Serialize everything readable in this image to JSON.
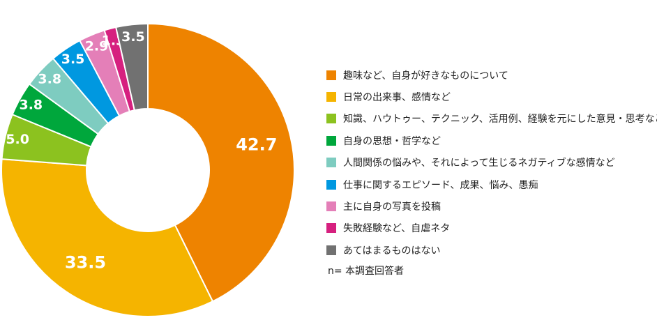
{
  "chart_data": {
    "type": "pie",
    "donut": true,
    "categories": [
      "趣味など、自身が好きなものについて",
      "日常の出来事、感情など",
      "知識、ハウトゥー、テクニック、活用例、経験を元にした意見・思考など",
      "自身の思想・哲学など",
      "人間関係の悩みや、それによって生じるネガティブな感情など",
      "仕事に関するエピソード、成果、悩み、愚痴",
      "主に自身の写真を投稿",
      "失敗経験など、自虐ネタ",
      "あてはまるものはない"
    ],
    "values": [
      42.7,
      33.5,
      5.0,
      3.8,
      3.8,
      3.5,
      2.9,
      1.3,
      3.5
    ],
    "labels": [
      "42.7",
      "33.5",
      "5.0",
      "3.8",
      "3.8",
      "3.5",
      "2.9",
      "1.3",
      "3.5"
    ],
    "colors": [
      "#EE8300",
      "#F5B400",
      "#8CC21F",
      "#00A73C",
      "#7ECCC0",
      "#0098E0",
      "#E47FB8",
      "#D6207F",
      "#717171"
    ],
    "legend_position": "right",
    "note": "n= 本調査回答者"
  }
}
